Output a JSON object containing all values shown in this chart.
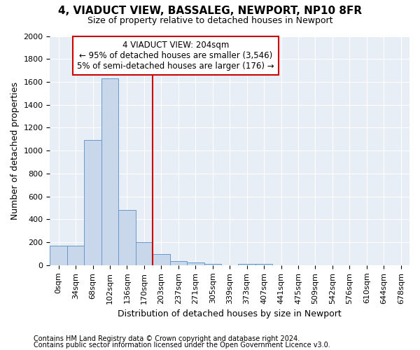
{
  "title": "4, VIADUCT VIEW, BASSALEG, NEWPORT, NP10 8FR",
  "subtitle": "Size of property relative to detached houses in Newport",
  "xlabel": "Distribution of detached houses by size in Newport",
  "ylabel": "Number of detached properties",
  "footnote1": "Contains HM Land Registry data © Crown copyright and database right 2024.",
  "footnote2": "Contains public sector information licensed under the Open Government Licence v3.0.",
  "annotation_line1": "4 VIADUCT VIEW: 204sqm",
  "annotation_line2": "← 95% of detached houses are smaller (3,546)",
  "annotation_line3": "5% of semi-detached houses are larger (176) →",
  "bar_color": "#c8d8ea",
  "bar_edge_color": "#6699cc",
  "background_color": "#e8eef5",
  "vline_color": "#cc0000",
  "grid_color": "#ffffff",
  "categories": [
    "0sqm",
    "34sqm",
    "68sqm",
    "102sqm",
    "136sqm",
    "170sqm",
    "203sqm",
    "237sqm",
    "271sqm",
    "305sqm",
    "339sqm",
    "373sqm",
    "407sqm",
    "441sqm",
    "475sqm",
    "509sqm",
    "542sqm",
    "576sqm",
    "610sqm",
    "644sqm",
    "678sqm"
  ],
  "values": [
    170,
    170,
    1090,
    1630,
    480,
    200,
    100,
    35,
    25,
    10,
    0,
    10,
    10,
    0,
    0,
    0,
    0,
    0,
    0,
    0,
    0
  ],
  "bin_width": 34,
  "vline_bin_idx": 6,
  "ylim": [
    0,
    2000
  ],
  "yticks": [
    0,
    200,
    400,
    600,
    800,
    1000,
    1200,
    1400,
    1600,
    1800,
    2000
  ],
  "title_fontsize": 11,
  "subtitle_fontsize": 9,
  "axis_fontsize": 9,
  "tick_fontsize": 8,
  "annot_fontsize": 8.5,
  "footnote_fontsize": 7
}
